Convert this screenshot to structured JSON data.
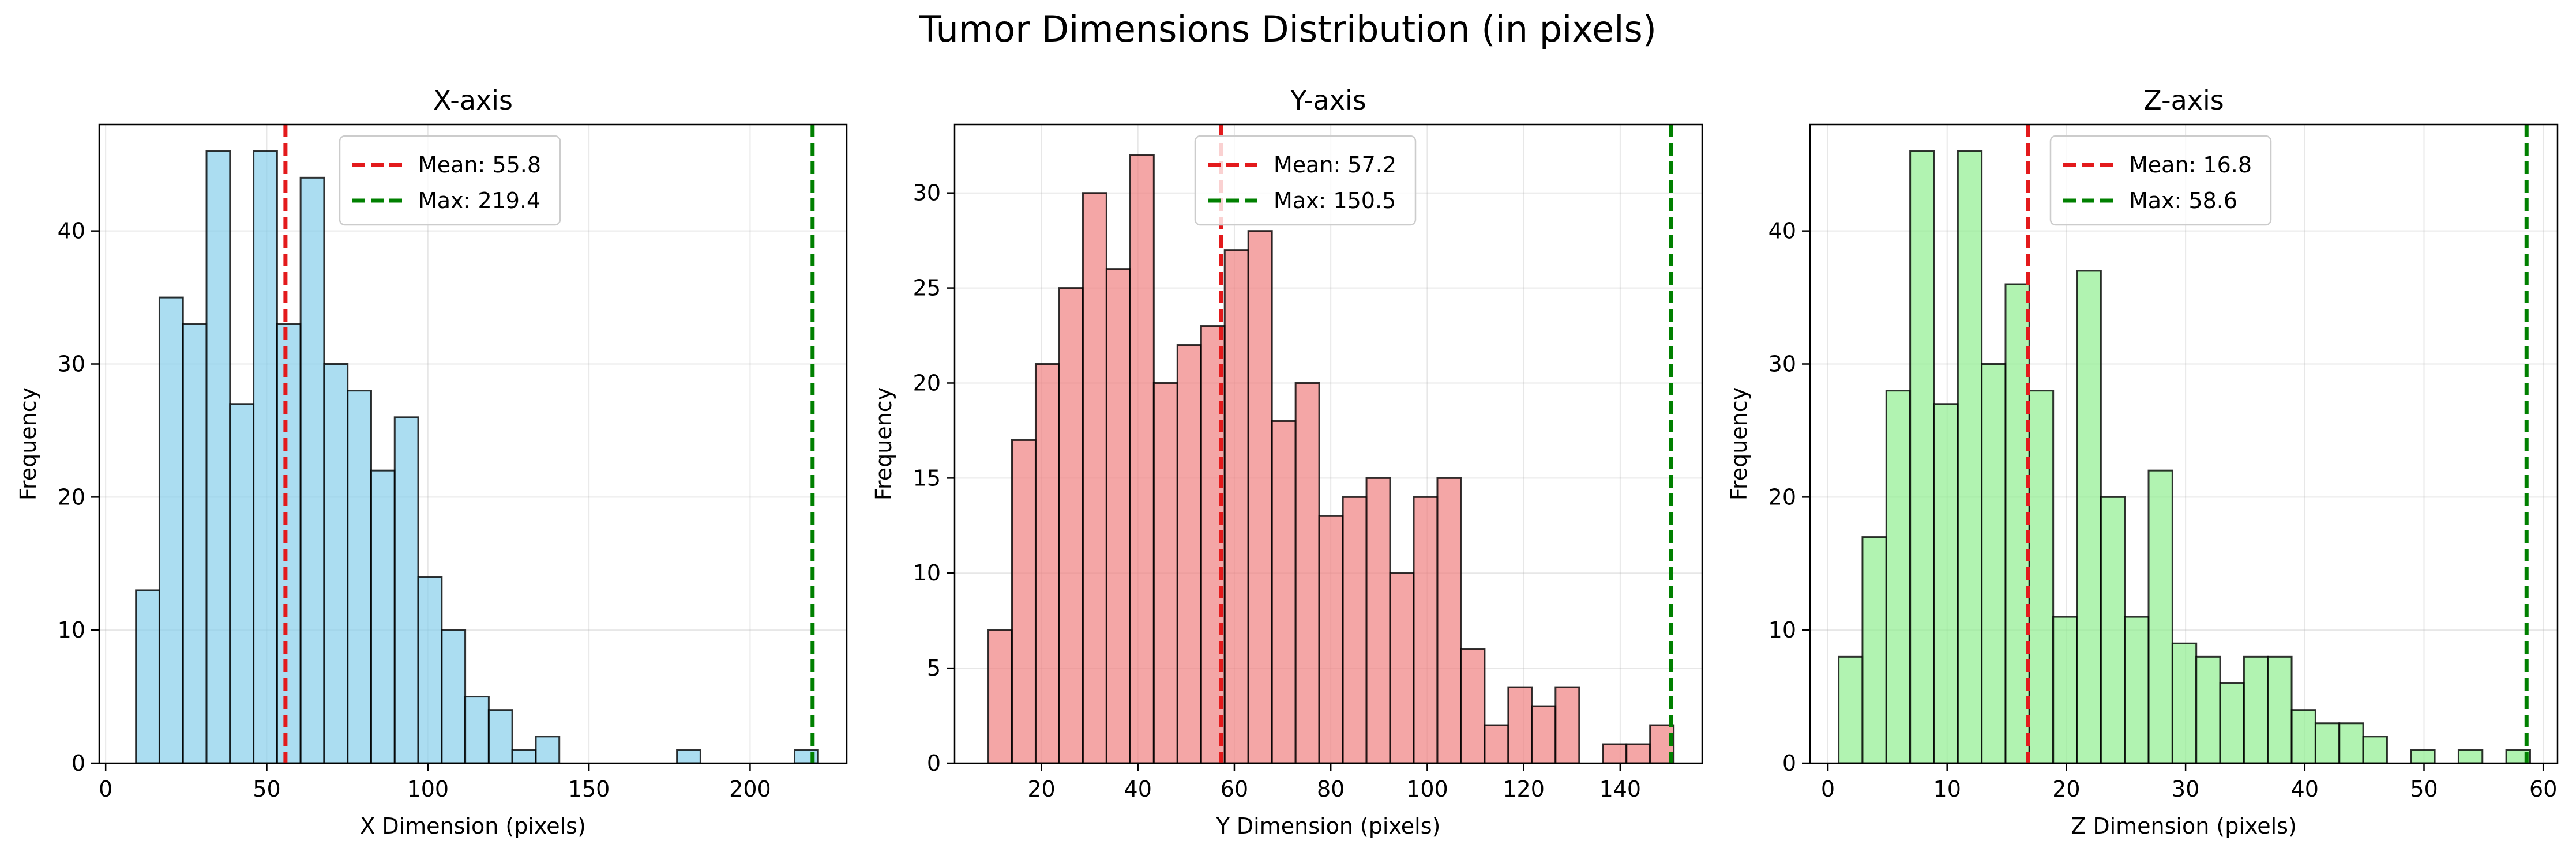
{
  "figure": {
    "title": "Tumor Dimensions Distribution (in pixels)"
  },
  "chart_data": [
    {
      "type": "bar",
      "title": "X-axis",
      "xlabel": "X Dimension (pixels)",
      "ylabel": "Frequency",
      "xlim": [
        -2,
        230
      ],
      "ylim": [
        0,
        48
      ],
      "xticks": [
        0,
        50,
        100,
        150,
        200
      ],
      "yticks": [
        0,
        10,
        20,
        30,
        40
      ],
      "grid": true,
      "legend_position": "top-center",
      "color": "#87ceeb",
      "bins": [
        [
          9.4,
          16.7,
          13
        ],
        [
          16.7,
          24.0,
          35
        ],
        [
          24.0,
          31.3,
          33
        ],
        [
          31.3,
          38.6,
          46
        ],
        [
          38.6,
          45.9,
          27
        ],
        [
          45.9,
          53.2,
          46
        ],
        [
          53.2,
          60.5,
          33
        ],
        [
          60.5,
          67.8,
          44
        ],
        [
          67.8,
          75.1,
          30
        ],
        [
          75.1,
          82.4,
          28
        ],
        [
          82.4,
          89.7,
          22
        ],
        [
          89.7,
          97.0,
          26
        ],
        [
          97.0,
          104.3,
          14
        ],
        [
          104.3,
          111.6,
          10
        ],
        [
          111.6,
          118.9,
          5
        ],
        [
          118.9,
          126.2,
          4
        ],
        [
          126.2,
          133.5,
          1
        ],
        [
          133.5,
          140.8,
          2
        ],
        [
          177.3,
          184.6,
          1
        ],
        [
          213.8,
          221.1,
          1
        ]
      ],
      "lines": [
        {
          "label": "Mean: 55.8",
          "value": 55.8,
          "color": "#e31a1c"
        },
        {
          "label": "Max: 219.4",
          "value": 219.4,
          "color": "#008000"
        }
      ]
    },
    {
      "type": "bar",
      "title": "Y-axis",
      "xlabel": "Y Dimension (pixels)",
      "ylabel": "Frequency",
      "xlim": [
        2,
        157
      ],
      "ylim": [
        0,
        33.6
      ],
      "xticks": [
        20,
        40,
        60,
        80,
        100,
        120,
        140
      ],
      "yticks": [
        0,
        5,
        10,
        15,
        20,
        25,
        30
      ],
      "grid": true,
      "legend_position": "top-center",
      "color": "#f08080",
      "bins": [
        [
          9.0,
          13.9,
          7
        ],
        [
          13.9,
          18.8,
          17
        ],
        [
          18.8,
          23.7,
          21
        ],
        [
          23.7,
          28.6,
          25
        ],
        [
          28.6,
          33.5,
          30
        ],
        [
          33.5,
          38.4,
          26
        ],
        [
          38.4,
          43.3,
          32
        ],
        [
          43.3,
          48.2,
          20
        ],
        [
          48.2,
          53.1,
          22
        ],
        [
          53.1,
          58.0,
          23
        ],
        [
          58.0,
          62.9,
          27
        ],
        [
          62.9,
          67.8,
          28
        ],
        [
          67.8,
          72.7,
          18
        ],
        [
          72.7,
          77.6,
          20
        ],
        [
          77.6,
          82.5,
          13
        ],
        [
          82.5,
          87.4,
          14
        ],
        [
          87.4,
          92.3,
          15
        ],
        [
          92.3,
          97.2,
          10
        ],
        [
          97.2,
          102.1,
          14
        ],
        [
          102.1,
          107.0,
          15
        ],
        [
          107.0,
          111.9,
          6
        ],
        [
          111.9,
          116.8,
          2
        ],
        [
          116.8,
          121.7,
          4
        ],
        [
          121.7,
          126.6,
          3
        ],
        [
          126.6,
          131.5,
          4
        ],
        [
          131.5,
          136.4,
          0
        ],
        [
          136.4,
          141.3,
          1
        ],
        [
          141.3,
          146.2,
          1
        ],
        [
          146.2,
          151.1,
          2
        ]
      ],
      "lines": [
        {
          "label": "Mean: 57.2",
          "value": 57.2,
          "color": "#e31a1c"
        },
        {
          "label": "Max: 150.5",
          "value": 150.5,
          "color": "#008000"
        }
      ]
    },
    {
      "type": "bar",
      "title": "Z-axis",
      "xlabel": "Z Dimension (pixels)",
      "ylabel": "Frequency",
      "xlim": [
        -1.5,
        61.2
      ],
      "ylim": [
        0,
        48
      ],
      "xticks": [
        0,
        10,
        20,
        30,
        40,
        50,
        60
      ],
      "yticks": [
        0,
        10,
        20,
        30,
        40
      ],
      "grid": true,
      "legend_position": "top-center",
      "color": "#90ee90",
      "bins": [
        [
          0.9,
          2.9,
          8
        ],
        [
          2.9,
          4.9,
          17
        ],
        [
          4.9,
          6.9,
          28
        ],
        [
          6.9,
          8.9,
          46
        ],
        [
          8.9,
          10.9,
          27
        ],
        [
          10.9,
          12.9,
          46
        ],
        [
          12.9,
          14.9,
          30
        ],
        [
          14.9,
          16.9,
          36
        ],
        [
          16.9,
          18.9,
          28
        ],
        [
          18.9,
          20.9,
          11
        ],
        [
          20.9,
          22.9,
          37
        ],
        [
          22.9,
          24.9,
          20
        ],
        [
          24.9,
          26.9,
          11
        ],
        [
          26.9,
          28.9,
          22
        ],
        [
          28.9,
          30.9,
          9
        ],
        [
          30.9,
          32.9,
          8
        ],
        [
          32.9,
          34.9,
          6
        ],
        [
          34.9,
          36.9,
          8
        ],
        [
          36.9,
          38.9,
          8
        ],
        [
          38.9,
          40.9,
          4
        ],
        [
          40.9,
          42.9,
          3
        ],
        [
          42.9,
          44.9,
          3
        ],
        [
          44.9,
          46.9,
          2
        ],
        [
          46.9,
          48.9,
          0
        ],
        [
          48.9,
          50.9,
          1
        ],
        [
          50.9,
          52.9,
          0
        ],
        [
          52.9,
          54.9,
          1
        ],
        [
          54.9,
          56.9,
          0
        ],
        [
          56.9,
          58.9,
          1
        ]
      ],
      "lines": [
        {
          "label": "Mean: 16.8",
          "value": 16.8,
          "color": "#e31a1c"
        },
        {
          "label": "Max: 58.6",
          "value": 58.6,
          "color": "#008000"
        }
      ]
    }
  ]
}
